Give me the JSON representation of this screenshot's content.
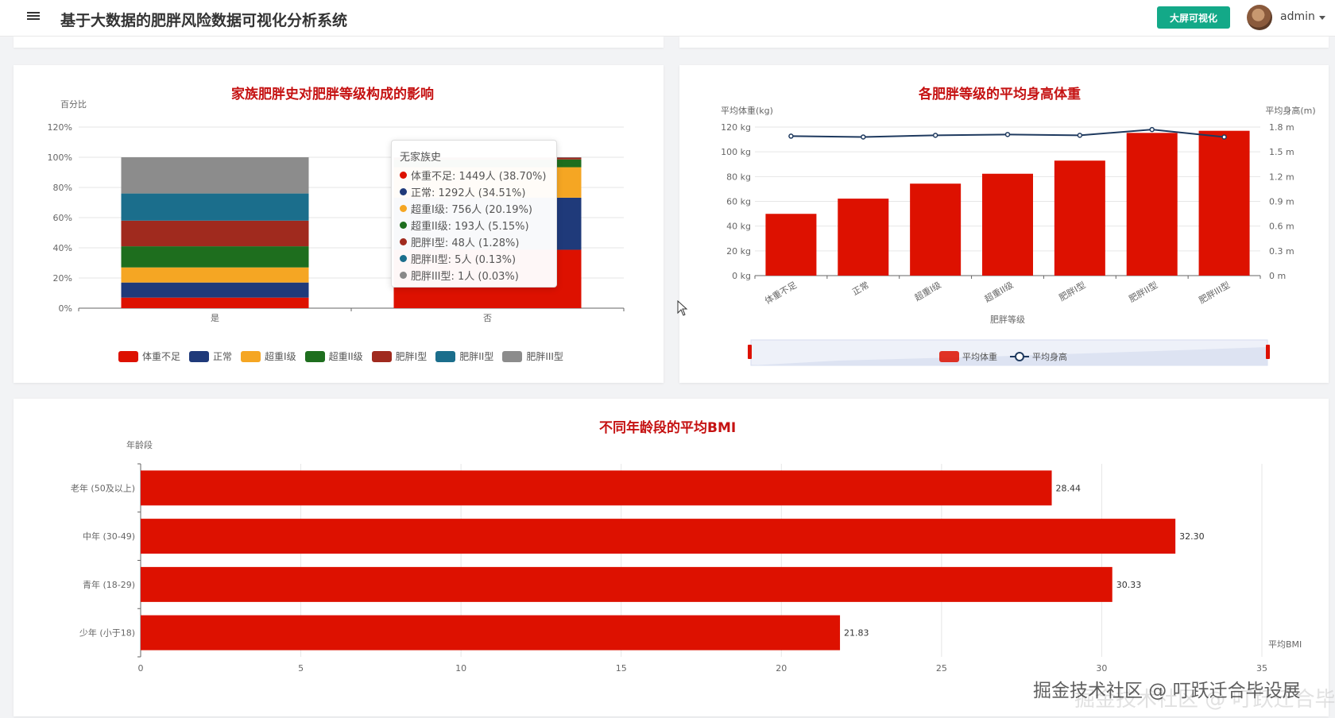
{
  "header": {
    "title": "基于大数据的肥胖风险数据可视化分析系统",
    "bigscreen_label": "大屏可视化",
    "user": "admin"
  },
  "panel1": {
    "title": "家族肥胖史对肥胖等级构成的影响",
    "ylabel": "百分比",
    "tooltip": {
      "title": "无家族史",
      "rows": [
        {
          "text": "体重不足: 1449人 (38.70%)",
          "color": "#dd1100"
        },
        {
          "text": "正常: 1292人 (34.51%)",
          "color": "#1f3a7a"
        },
        {
          "text": "超重I级: 756人 (20.19%)",
          "color": "#f5a623"
        },
        {
          "text": "超重II级: 193人 (5.15%)",
          "color": "#1e6e1e"
        },
        {
          "text": "肥胖I型: 48人 (1.28%)",
          "color": "#a02a1e"
        },
        {
          "text": "肥胖II型: 5人 (0.13%)",
          "color": "#1b6e8c"
        },
        {
          "text": "肥胖III型: 1人 (0.03%)",
          "color": "#888888"
        }
      ]
    }
  },
  "panel2": {
    "title": "各肥胖等级的平均身高体重",
    "ylabel_left": "平均体重(kg)",
    "ylabel_right": "平均身高(m)",
    "xlabel": "肥胖等级"
  },
  "panel3": {
    "title": "不同年龄段的平均BMI",
    "ylabel": "年龄段",
    "xlabel": "平均BMI"
  },
  "watermark": "掘金技术社区 @ 叮跃迁合毕设展",
  "chart_data": [
    {
      "type": "bar",
      "stacked": true,
      "title": "家族肥胖史对肥胖等级构成的影响",
      "ylabel": "百分比",
      "categories": [
        "是",
        "否"
      ],
      "ylim": [
        0,
        120
      ],
      "yticks": [
        "0%",
        "20%",
        "40%",
        "60%",
        "80%",
        "100%",
        "120%"
      ],
      "legend": "bottom",
      "series": [
        {
          "name": "体重不足",
          "color": "#dd1100",
          "values": [
            7,
            38.7
          ]
        },
        {
          "name": "正常",
          "color": "#1f3a7a",
          "values": [
            10,
            34.51
          ]
        },
        {
          "name": "超重I级",
          "color": "#f5a623",
          "values": [
            10,
            20.19
          ]
        },
        {
          "name": "超重II级",
          "color": "#1e6e1e",
          "values": [
            14,
            5.15
          ]
        },
        {
          "name": "肥胖I型",
          "color": "#a02a1e",
          "values": [
            17,
            1.28
          ]
        },
        {
          "name": "肥胖II型",
          "color": "#1b6e8c",
          "values": [
            18,
            0.13
          ]
        },
        {
          "name": "肥胖III型",
          "color": "#8c8c8c",
          "values": [
            24,
            0.03
          ]
        }
      ]
    },
    {
      "type": "bar",
      "title": "各肥胖等级的平均身高体重",
      "xlabel": "肥胖等级",
      "categories": [
        "体重不足",
        "正常",
        "超重I级",
        "超重II级",
        "肥胖I型",
        "肥胖II型",
        "肥胖III型"
      ],
      "ylim_left": [
        0,
        120
      ],
      "yticks_left": [
        "0 kg",
        "20 kg",
        "40 kg",
        "60 kg",
        "80 kg",
        "100 kg",
        "120 kg"
      ],
      "ylim_right": [
        0,
        1.8
      ],
      "yticks_right": [
        "0 m",
        "0.3 m",
        "0.6 m",
        "0.9 m",
        "1.2 m",
        "1.5 m",
        "1.8 m"
      ],
      "legend": "bottom",
      "series": [
        {
          "name": "平均体重",
          "type": "bar",
          "color": "#dd1100",
          "values": [
            49.9,
            62.2,
            74.3,
            82.3,
            92.9,
            115.3,
            117.0
          ]
        },
        {
          "name": "平均身高",
          "type": "line",
          "color": "#1f3a5f",
          "values": [
            1.69,
            1.68,
            1.7,
            1.71,
            1.7,
            1.77,
            1.68
          ]
        }
      ]
    },
    {
      "type": "bar",
      "orientation": "horizontal",
      "title": "不同年龄段的平均BMI",
      "xlabel": "平均BMI",
      "ylabel": "年龄段",
      "categories": [
        "少年 (小于18)",
        "青年 (18-29)",
        "中年 (30-49)",
        "老年 (50及以上)"
      ],
      "values": [
        21.83,
        30.33,
        32.3,
        28.44
      ],
      "value_labels": [
        "21.83",
        "30.33",
        "32.30",
        "28.44"
      ],
      "xlim": [
        0,
        35
      ],
      "xticks": [
        "0",
        "5",
        "10",
        "15",
        "20",
        "25",
        "30",
        "35"
      ],
      "color": "#dd1100"
    }
  ]
}
